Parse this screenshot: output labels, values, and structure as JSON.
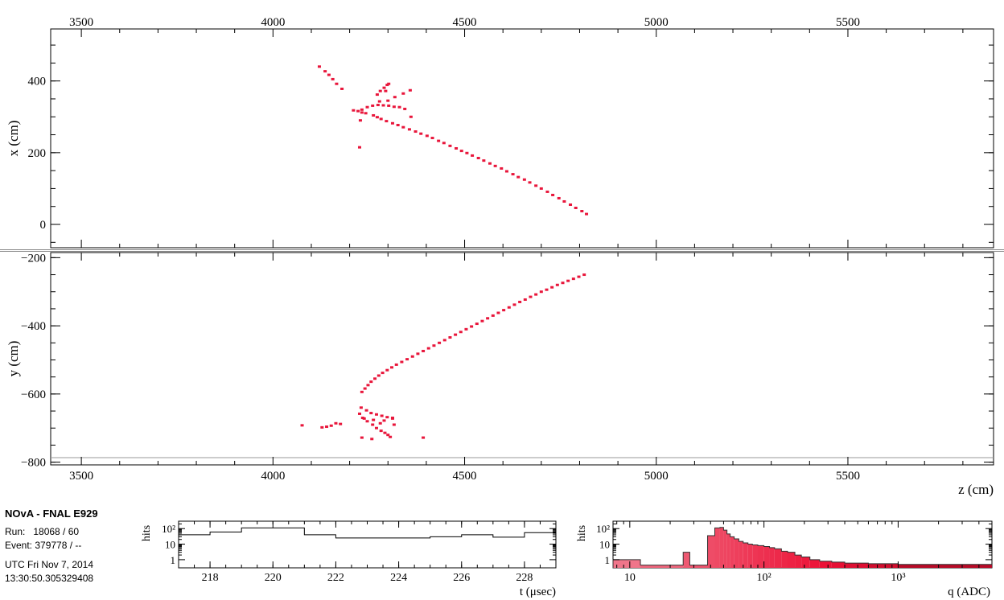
{
  "header": {
    "experiment": "NOvA - FNAL E929",
    "run_line": "Run:   18068 / 60",
    "event_line": "Event: 379778 / --",
    "utc_line": "UTC Fri Nov 7, 2014",
    "time_line": "13:30:50.305329408"
  },
  "colors": {
    "hit": "#e8163b",
    "frame": "#000000",
    "separator": "#888888"
  },
  "xz_view": {
    "ylabel": "x (cm)",
    "xlim": [
      3420,
      5880
    ],
    "ylim": [
      -65,
      545
    ],
    "x_ticks": [
      "3500",
      "4000",
      "4500",
      "5000",
      "5500"
    ],
    "x_tick_values": [
      3500,
      4000,
      4500,
      5000,
      5500
    ],
    "y_ticks": [
      "400",
      "200",
      "0"
    ],
    "y_tick_values": [
      400,
      200,
      0
    ],
    "hits": [
      [
        4121,
        440
      ],
      [
        4136,
        427
      ],
      [
        4146,
        417
      ],
      [
        4156,
        405
      ],
      [
        4166,
        392
      ],
      [
        4180,
        378
      ],
      [
        4210,
        318
      ],
      [
        4222,
        316
      ],
      [
        4232,
        312
      ],
      [
        4242,
        310
      ],
      [
        4262,
        304
      ],
      [
        4272,
        299
      ],
      [
        4282,
        294
      ],
      [
        4296,
        288
      ],
      [
        4312,
        282
      ],
      [
        4326,
        277
      ],
      [
        4340,
        271
      ],
      [
        4356,
        265
      ],
      [
        4372,
        259
      ],
      [
        4386,
        253
      ],
      [
        4402,
        247
      ],
      [
        4416,
        241
      ],
      [
        4432,
        233
      ],
      [
        4446,
        227
      ],
      [
        4462,
        219
      ],
      [
        4478,
        212
      ],
      [
        4492,
        205
      ],
      [
        4506,
        199
      ],
      [
        4520,
        192
      ],
      [
        4536,
        185
      ],
      [
        4550,
        178
      ],
      [
        4566,
        170
      ],
      [
        4580,
        163
      ],
      [
        4596,
        156
      ],
      [
        4610,
        148
      ],
      [
        4626,
        140
      ],
      [
        4640,
        132
      ],
      [
        4656,
        125
      ],
      [
        4670,
        117
      ],
      [
        4686,
        108
      ],
      [
        4700,
        100
      ],
      [
        4716,
        91
      ],
      [
        4730,
        82
      ],
      [
        4746,
        73
      ],
      [
        4760,
        64
      ],
      [
        4776,
        55
      ],
      [
        4790,
        46
      ],
      [
        4806,
        37
      ],
      [
        4818,
        29
      ],
      [
        4232,
        320
      ],
      [
        4246,
        327
      ],
      [
        4260,
        331
      ],
      [
        4274,
        333
      ],
      [
        4288,
        332
      ],
      [
        4302,
        331
      ],
      [
        4316,
        328
      ],
      [
        4330,
        327
      ],
      [
        4344,
        322
      ],
      [
        4272,
        362
      ],
      [
        4280,
        372
      ],
      [
        4290,
        381
      ],
      [
        4294,
        372
      ],
      [
        4298,
        389
      ],
      [
        4302,
        392
      ],
      [
        4318,
        355
      ],
      [
        4340,
        365
      ],
      [
        4358,
        374
      ],
      [
        4360,
        300
      ],
      [
        4228,
        290
      ],
      [
        4226,
        215
      ],
      [
        4278,
        343
      ],
      [
        4300,
        345
      ]
    ]
  },
  "yz_view": {
    "ylabel": "y (cm)",
    "xlabel": "z (cm)",
    "xlim": [
      3420,
      5880
    ],
    "ylim": [
      -808,
      -185
    ],
    "x_ticks": [
      "3500",
      "4000",
      "4500",
      "5000",
      "5500"
    ],
    "x_tick_values": [
      3500,
      4000,
      4500,
      5000,
      5500
    ],
    "y_ticks": [
      "−200",
      "−400",
      "−600",
      "−800"
    ],
    "y_tick_values": [
      -200,
      -400,
      -600,
      -800
    ],
    "hits": [
      [
        4812,
        -250
      ],
      [
        4798,
        -256
      ],
      [
        4784,
        -262
      ],
      [
        4770,
        -268
      ],
      [
        4756,
        -274
      ],
      [
        4742,
        -280
      ],
      [
        4728,
        -287
      ],
      [
        4714,
        -294
      ],
      [
        4700,
        -300
      ],
      [
        4686,
        -308
      ],
      [
        4672,
        -315
      ],
      [
        4658,
        -323
      ],
      [
        4644,
        -330
      ],
      [
        4630,
        -338
      ],
      [
        4616,
        -346
      ],
      [
        4602,
        -354
      ],
      [
        4588,
        -362
      ],
      [
        4574,
        -370
      ],
      [
        4560,
        -378
      ],
      [
        4546,
        -386
      ],
      [
        4532,
        -394
      ],
      [
        4518,
        -402
      ],
      [
        4504,
        -410
      ],
      [
        4490,
        -418
      ],
      [
        4476,
        -426
      ],
      [
        4462,
        -434
      ],
      [
        4448,
        -442
      ],
      [
        4434,
        -450
      ],
      [
        4420,
        -458
      ],
      [
        4406,
        -466
      ],
      [
        4392,
        -474
      ],
      [
        4378,
        -482
      ],
      [
        4364,
        -490
      ],
      [
        4350,
        -498
      ],
      [
        4336,
        -506
      ],
      [
        4322,
        -514
      ],
      [
        4310,
        -522
      ],
      [
        4298,
        -530
      ],
      [
        4286,
        -538
      ],
      [
        4276,
        -546
      ],
      [
        4266,
        -555
      ],
      [
        4256,
        -564
      ],
      [
        4248,
        -574
      ],
      [
        4240,
        -584
      ],
      [
        4232,
        -594
      ],
      [
        4230,
        -640
      ],
      [
        4244,
        -648
      ],
      [
        4256,
        -656
      ],
      [
        4270,
        -660
      ],
      [
        4284,
        -664
      ],
      [
        4298,
        -668
      ],
      [
        4312,
        -670
      ],
      [
        4226,
        -658
      ],
      [
        4234,
        -670
      ],
      [
        4246,
        -680
      ],
      [
        4260,
        -690
      ],
      [
        4270,
        -700
      ],
      [
        4282,
        -708
      ],
      [
        4292,
        -714
      ],
      [
        4300,
        -720
      ],
      [
        4306,
        -726
      ],
      [
        4312,
        -672
      ],
      [
        4316,
        -690
      ],
      [
        4262,
        -676
      ],
      [
        4280,
        -686
      ],
      [
        4290,
        -678
      ],
      [
        4238,
        -672
      ],
      [
        4076,
        -692
      ],
      [
        4128,
        -698
      ],
      [
        4140,
        -696
      ],
      [
        4152,
        -693
      ],
      [
        4164,
        -686
      ],
      [
        4176,
        -688
      ],
      [
        4232,
        -728
      ],
      [
        4258,
        -732
      ],
      [
        4392,
        -728
      ]
    ]
  },
  "time_hist": {
    "ylabel": "hits",
    "xlabel": "t (μsec)",
    "xlim": [
      217,
      229
    ],
    "log_range": [
      0.3,
      300
    ],
    "y_ticks": [
      "10²",
      "10",
      "1"
    ],
    "y_tick_values": [
      100,
      10,
      1
    ],
    "x_ticks": [
      "218",
      "220",
      "222",
      "224",
      "226",
      "228"
    ],
    "x_tick_values": [
      218,
      220,
      222,
      224,
      226,
      228
    ],
    "bin_edges": [
      217,
      218,
      219,
      220,
      221,
      222,
      223,
      224,
      225,
      226,
      227,
      228,
      229
    ],
    "counts": [
      40,
      60,
      110,
      110,
      40,
      25,
      25,
      25,
      30,
      40,
      28,
      55
    ]
  },
  "charge_hist": {
    "ylabel": "hits",
    "xlabel": "q (ADC)",
    "xlim": [
      7.5,
      5000
    ],
    "log_range": [
      0.3,
      300
    ],
    "y_ticks": [
      "10²",
      "10",
      "1"
    ],
    "y_tick_values": [
      100,
      10,
      1
    ],
    "x_ticks": [
      "10",
      "10²",
      "10³"
    ],
    "x_tick_values": [
      10,
      100,
      1000
    ],
    "bins": [
      [
        7.5,
        12,
        1
      ],
      [
        12,
        25,
        0.45
      ],
      [
        25,
        28,
        3
      ],
      [
        28,
        38,
        0.45
      ],
      [
        38,
        43,
        35
      ],
      [
        43,
        47,
        110
      ],
      [
        47,
        50,
        120
      ],
      [
        50,
        53,
        80
      ],
      [
        53,
        56,
        45
      ],
      [
        56,
        60,
        30
      ],
      [
        60,
        65,
        22
      ],
      [
        65,
        70,
        15
      ],
      [
        70,
        76,
        12
      ],
      [
        76,
        82,
        10
      ],
      [
        82,
        90,
        9
      ],
      [
        90,
        100,
        8
      ],
      [
        100,
        110,
        7
      ],
      [
        110,
        120,
        6
      ],
      [
        120,
        135,
        5
      ],
      [
        135,
        150,
        3.5
      ],
      [
        150,
        170,
        3
      ],
      [
        170,
        190,
        2
      ],
      [
        190,
        220,
        1.5
      ],
      [
        220,
        260,
        1
      ],
      [
        260,
        320,
        0.8
      ],
      [
        320,
        400,
        0.7
      ],
      [
        400,
        600,
        0.6
      ],
      [
        600,
        1000,
        0.55
      ],
      [
        1000,
        5000,
        0.5
      ]
    ]
  }
}
